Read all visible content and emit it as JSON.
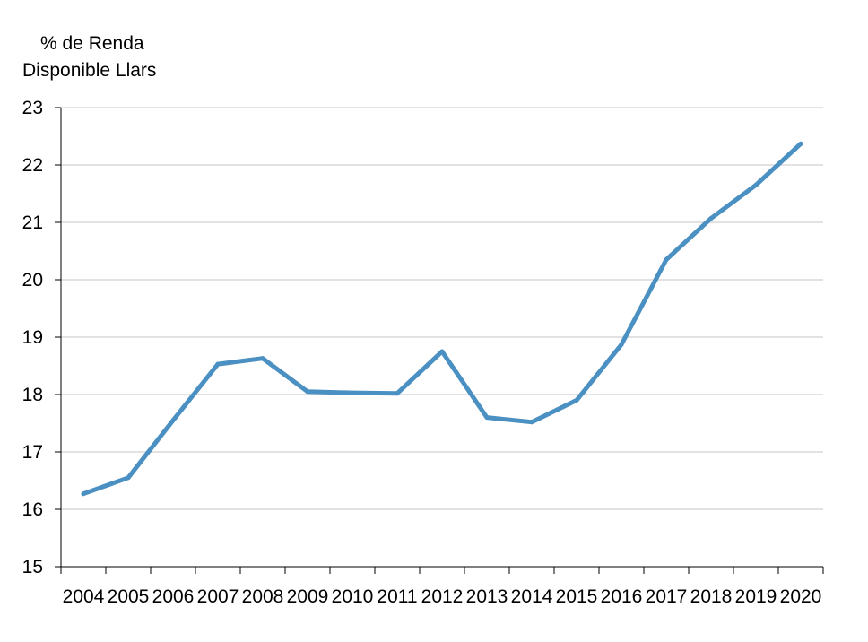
{
  "chart_data": {
    "type": "line",
    "ylabel_lines": [
      "% de Renda",
      "Disponible Llars"
    ],
    "xlabel": "",
    "title": "",
    "ylim": [
      15,
      23
    ],
    "yticks": [
      15,
      16,
      17,
      18,
      19,
      20,
      21,
      22,
      23
    ],
    "grid": true,
    "legend": "none",
    "categories": [
      "2004",
      "2005",
      "2006",
      "2007",
      "2008",
      "2009",
      "2010",
      "2011",
      "2012",
      "2013",
      "2014",
      "2015",
      "2016",
      "2017",
      "2018",
      "2019",
      "2020"
    ],
    "series": [
      {
        "color": "#4a90c2",
        "values": [
          16.27,
          16.55,
          17.55,
          18.53,
          18.63,
          18.05,
          18.03,
          18.02,
          18.75,
          17.6,
          17.52,
          17.9,
          18.87,
          20.35,
          21.07,
          21.65,
          22.37
        ]
      }
    ]
  }
}
